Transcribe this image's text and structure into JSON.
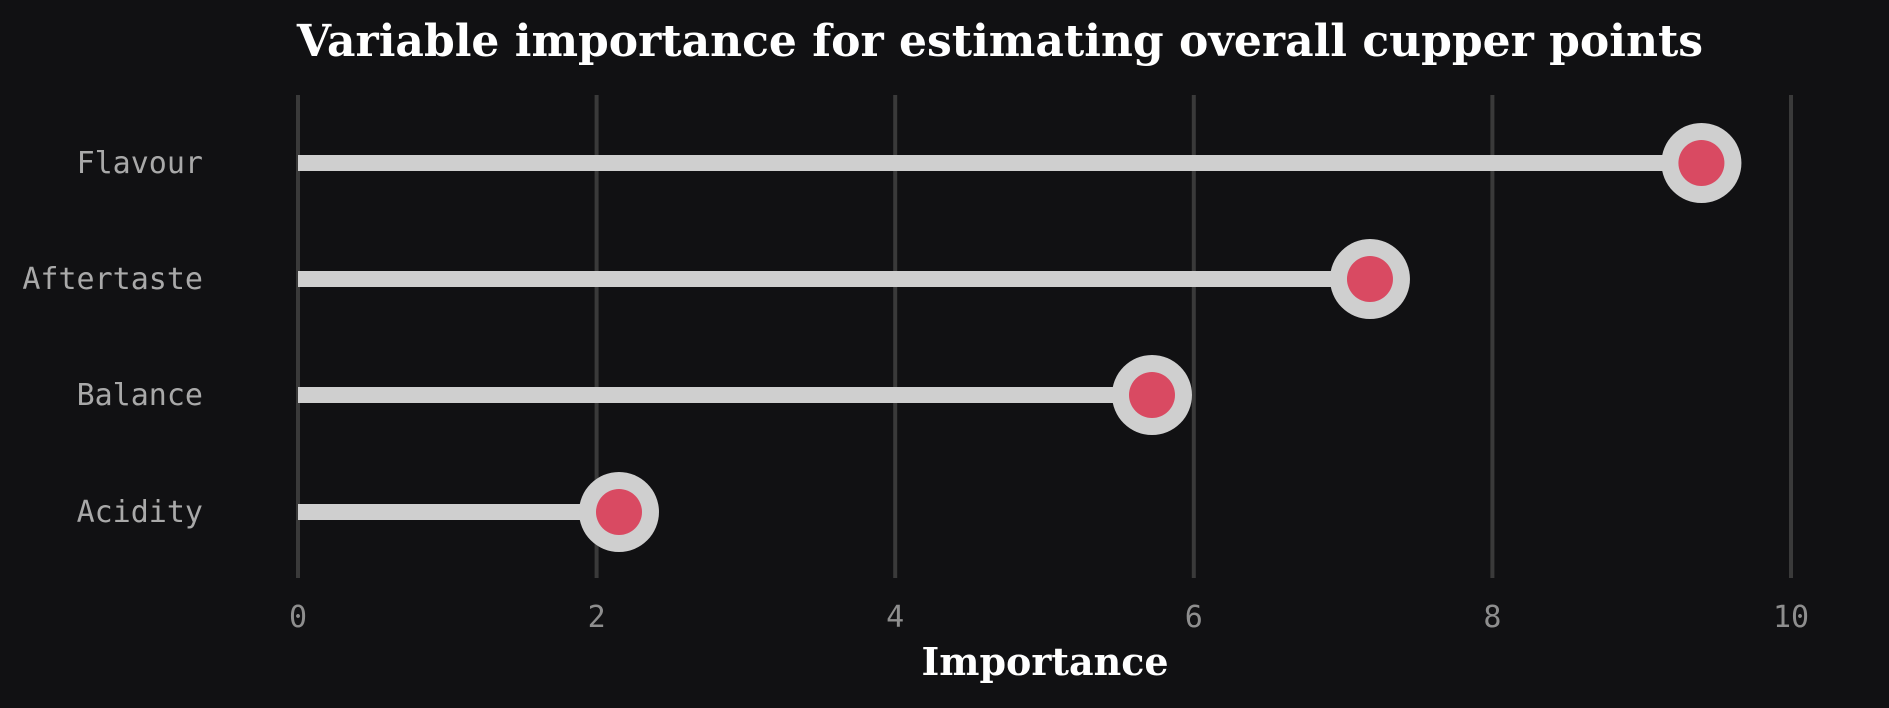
{
  "chart_data": {
    "type": "lollipop",
    "title": "Variable importance for estimating overall cupper points",
    "xlabel": "Importance",
    "ylabel": "",
    "categories": [
      "Flavour",
      "Aftertaste",
      "Balance",
      "Acidity"
    ],
    "values": [
      9.4,
      7.18,
      5.72,
      2.15
    ],
    "xlim": [
      0,
      10
    ],
    "xticks": [
      "0",
      "2",
      "4",
      "6",
      "8",
      "10"
    ],
    "grid": "vertical",
    "legend": "none"
  },
  "colors": {
    "background": "#111113",
    "stem": "#cfcfcf",
    "marker_outer": "#cfcfcf",
    "marker_inner": "#d94a62",
    "grid": "#3a3a3a"
  }
}
